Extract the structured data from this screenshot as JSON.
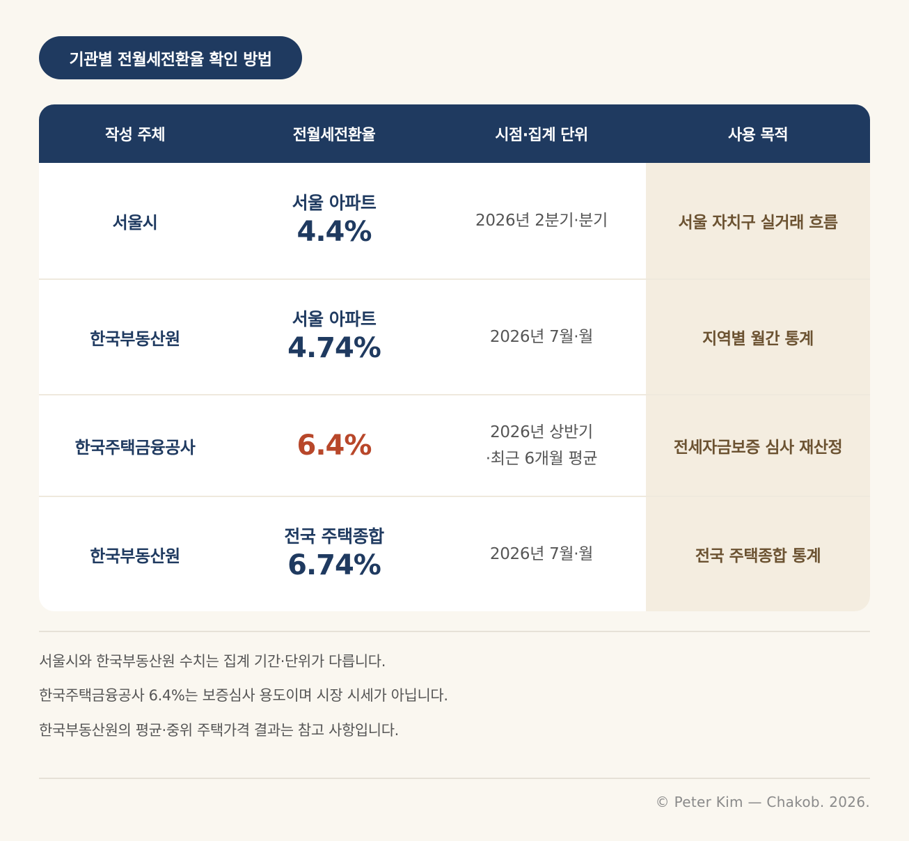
{
  "badge": {
    "title": "기관별 전월세전환율 확인 방법"
  },
  "table": {
    "headers": [
      "작성 주체",
      "전월세전환율",
      "시점·집계 단위",
      "사용 목적"
    ],
    "rows": [
      {
        "org": "서울시",
        "rate_label": "서울 아파트",
        "rate_value": "4.4%",
        "period_line1": "2026년 2분기·분기",
        "period_line2": "",
        "purpose": "서울 자치구 실거래 흐름"
      },
      {
        "org": "한국부동산원",
        "rate_label": "서울 아파트",
        "rate_value": "4.74%",
        "period_line1": "2026년 7월·월",
        "period_line2": "",
        "purpose": "지역별 월간 통계"
      },
      {
        "org": "한국주택금융공사",
        "rate_label": "",
        "rate_value": "6.4%",
        "period_line1": "2026년 상반기",
        "period_line2": "·최근 6개월 평균",
        "purpose": "전세자금보증 심사 재산정"
      },
      {
        "org": "한국부동산원",
        "rate_label": "전국 주택종합",
        "rate_value": "6.74%",
        "period_line1": "2026년 7월·월",
        "period_line2": "",
        "purpose": "전국 주택종합 통계"
      }
    ]
  },
  "notes": [
    "서울시와 한국부동산원 수치는 집계 기간·단위가 다릅니다.",
    "한국주택금융공사 6.4%는 보증심사 용도이며 시장 시세가 아닙니다.",
    "한국부동산원의 평균·중위 주택가격 결과는 참고 사항입니다."
  ],
  "footer": {
    "credit": "© Peter Kim — Chakob. 2026."
  },
  "colors": {
    "navy": "#1f3a60",
    "accent": "#b8472a",
    "purpose_bg": "#f4ede0",
    "page_bg": "#faf7f0"
  }
}
